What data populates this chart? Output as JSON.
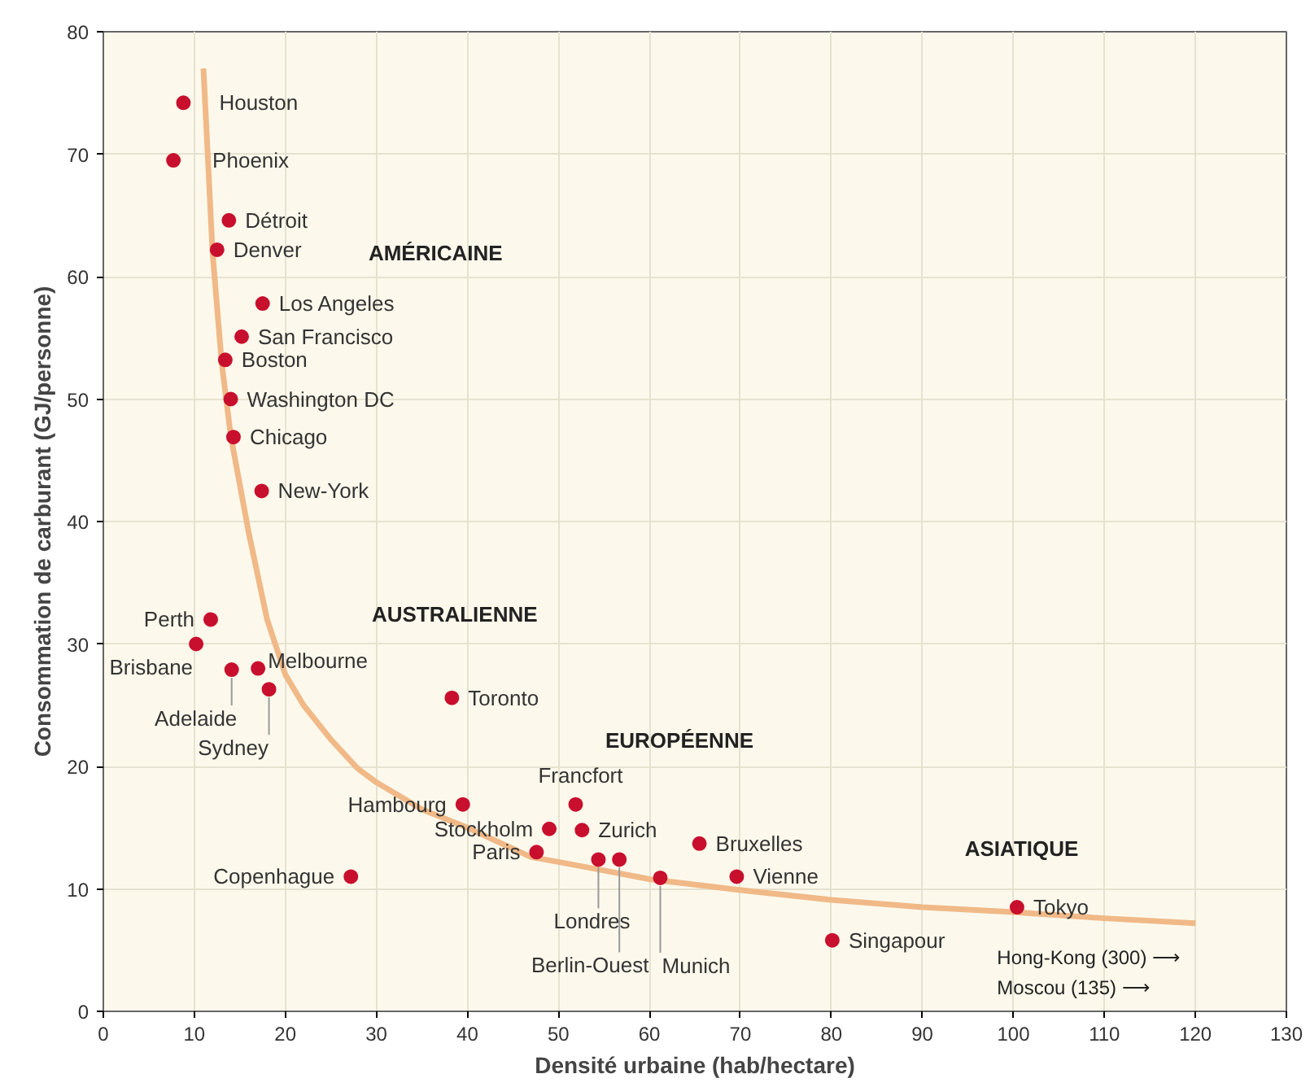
{
  "chart_data": {
    "type": "scatter",
    "xlabel": "Densité urbaine (hab/hectare)",
    "ylabel": "Consommation de carburant (GJ/personne)",
    "xlim": [
      0,
      130
    ],
    "ylim": [
      0,
      80
    ],
    "xticks": [
      0,
      10,
      20,
      30,
      40,
      50,
      60,
      70,
      80,
      90,
      100,
      110,
      120,
      130
    ],
    "yticks": [
      0,
      10,
      20,
      30,
      40,
      50,
      60,
      70,
      80
    ],
    "grid": true,
    "marker": "circle",
    "series": [
      {
        "color": "#c8102e",
        "x": [
          8.8,
          7.7,
          13.8,
          12.5,
          17.5,
          15.2,
          13.4,
          14.0,
          14.3,
          17.4,
          11.8,
          10.2,
          14.1,
          17.0,
          18.2,
          38.3,
          39.5,
          49.0,
          47.6,
          51.9,
          52.6,
          54.4,
          56.7,
          61.2,
          65.5,
          69.6,
          80.1,
          100.4,
          27.2
        ],
        "values": [
          74.2,
          69.5,
          64.6,
          62.2,
          57.8,
          55.1,
          53.2,
          50.0,
          46.9,
          42.5,
          32.0,
          30.0,
          27.9,
          28.0,
          26.3,
          25.6,
          16.9,
          14.9,
          13.0,
          16.9,
          14.8,
          12.4,
          12.4,
          10.9,
          13.7,
          11.0,
          5.8,
          8.5,
          11.0
        ]
      },
      {
        "type": "line",
        "color": "#f0b987",
        "line_style": "solid",
        "marker": "none",
        "x": [
          11,
          12,
          13,
          14,
          16,
          18,
          20,
          22,
          25,
          28,
          30,
          35,
          40,
          47,
          50,
          60,
          70,
          80,
          90,
          100,
          110,
          120
        ],
        "values": [
          77,
          62,
          53,
          47,
          39,
          32,
          27.5,
          25,
          22.2,
          19.8,
          18.7,
          16.5,
          15,
          12.6,
          12.2,
          10.8,
          9.9,
          9.1,
          8.5,
          8.1,
          7.6,
          7.2
        ]
      }
    ],
    "annotations": [
      {
        "text": "Houston",
        "x": 8.8,
        "y": 74.2
      },
      {
        "text": "Phoenix",
        "x": 7.7,
        "y": 69.5
      },
      {
        "text": "Détroit",
        "x": 13.8,
        "y": 64.6
      },
      {
        "text": "Denver",
        "x": 12.5,
        "y": 62.2
      },
      {
        "text": "Los Angeles",
        "x": 17.5,
        "y": 57.8
      },
      {
        "text": "San Francisco",
        "x": 15.2,
        "y": 55.1
      },
      {
        "text": "Boston",
        "x": 13.4,
        "y": 53.2
      },
      {
        "text": "Washington DC",
        "x": 14.0,
        "y": 50.0
      },
      {
        "text": "Chicago",
        "x": 14.3,
        "y": 46.9
      },
      {
        "text": "New-York",
        "x": 17.4,
        "y": 42.5
      },
      {
        "text": "Perth",
        "x": 11.8,
        "y": 32.0
      },
      {
        "text": "Brisbane",
        "x": 10.2,
        "y": 30.0
      },
      {
        "text": "Adelaide",
        "x": 14.1,
        "y": 27.9
      },
      {
        "text": "Melbourne",
        "x": 17.0,
        "y": 28.0
      },
      {
        "text": "Sydney",
        "x": 18.2,
        "y": 26.3
      },
      {
        "text": "Toronto",
        "x": 38.3,
        "y": 25.6
      },
      {
        "text": "Hambourg",
        "x": 39.5,
        "y": 16.9
      },
      {
        "text": "Stockholm",
        "x": 49.0,
        "y": 14.9
      },
      {
        "text": "Paris",
        "x": 47.6,
        "y": 13.0
      },
      {
        "text": "Francfort",
        "x": 51.9,
        "y": 16.9
      },
      {
        "text": "Zurich",
        "x": 52.6,
        "y": 14.8
      },
      {
        "text": "Londres",
        "x": 54.4,
        "y": 12.4
      },
      {
        "text": "Berlin-Ouest",
        "x": 56.7,
        "y": 12.4
      },
      {
        "text": "Munich",
        "x": 61.2,
        "y": 10.9
      },
      {
        "text": "Bruxelles",
        "x": 65.5,
        "y": 13.7
      },
      {
        "text": "Vienne",
        "x": 69.6,
        "y": 11.0
      },
      {
        "text": "Singapour",
        "x": 80.1,
        "y": 5.8
      },
      {
        "text": "Tokyo",
        "x": 100.4,
        "y": 8.5
      },
      {
        "text": "Copenhague",
        "x": 27.2,
        "y": 11.0
      },
      "AMÉRICAINE",
      "AUSTRALIENNE",
      "EUROPÉENNE",
      "ASIATIQUE",
      "Hong-Kong (300) ⟶",
      "Moscou (135) ⟶"
    ]
  }
}
